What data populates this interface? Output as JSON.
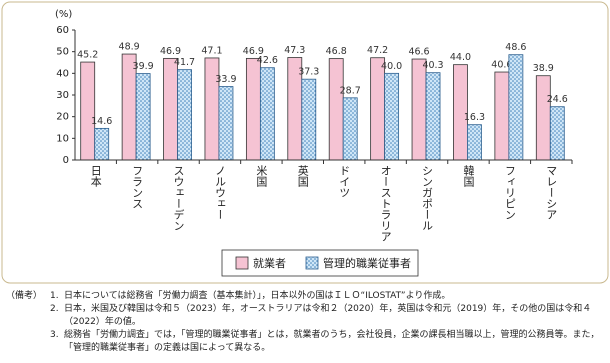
{
  "chart_data": {
    "type": "bar",
    "y_label": "(%)",
    "categories": [
      "日本",
      "フランス",
      "スウェーデン",
      "ノルウェー",
      "米国",
      "英国",
      "ドイツ",
      "オーストラリア",
      "シンガポール",
      "韓国",
      "フィリピン",
      "マレーシア"
    ],
    "series": [
      {
        "name": "就業者",
        "color": "#f5c3d3",
        "values": [
          45.2,
          48.9,
          46.9,
          47.1,
          46.9,
          47.3,
          46.8,
          47.2,
          46.6,
          44.0,
          40.6,
          38.9
        ],
        "value_labels": [
          "45.2",
          "48.9",
          "46.9",
          "47.1",
          "46.9",
          "47.3",
          "46.8",
          "47.2",
          "46.6",
          "44.0",
          "40.6",
          "38.9"
        ]
      },
      {
        "name": "管理的職業従事者",
        "color": "#cfe6f7",
        "values": [
          14.6,
          39.9,
          41.7,
          33.9,
          42.6,
          37.3,
          28.7,
          40.0,
          40.3,
          16.3,
          48.6,
          24.6
        ],
        "value_labels": [
          "14.6",
          "39.9",
          "41.7",
          "33.9",
          "42.6",
          "37.3",
          "28.7",
          "40.0",
          "40.3",
          "16.3",
          "48.6",
          "24.6"
        ]
      }
    ],
    "ylim": [
      0,
      60
    ],
    "yticks": [
      0,
      10,
      20,
      30,
      40,
      50,
      60
    ],
    "grid": false
  },
  "notes": {
    "label": "（備考）",
    "items": [
      {
        "number": "1.",
        "text": "日本については総務省「労働力調査（基本集計）」，日本以外の国はＩＬＯ“ILOSTAT”より作成。"
      },
      {
        "number": "2.",
        "text": "日本，米国及び韓国は令和５（2023）年，オーストラリアは令和２（2020）年，英国は令和元（2019）年，その他の国は令和４（2022）年の値。"
      },
      {
        "number": "3.",
        "text": "総務省「労働力調査」では，「管理的職業従事者」とは，就業者のうち，会社役員，企業の課長相当職以上，管理的公務員等。また，「管理的職業従事者」の定義は国によって異なる。"
      }
    ]
  }
}
